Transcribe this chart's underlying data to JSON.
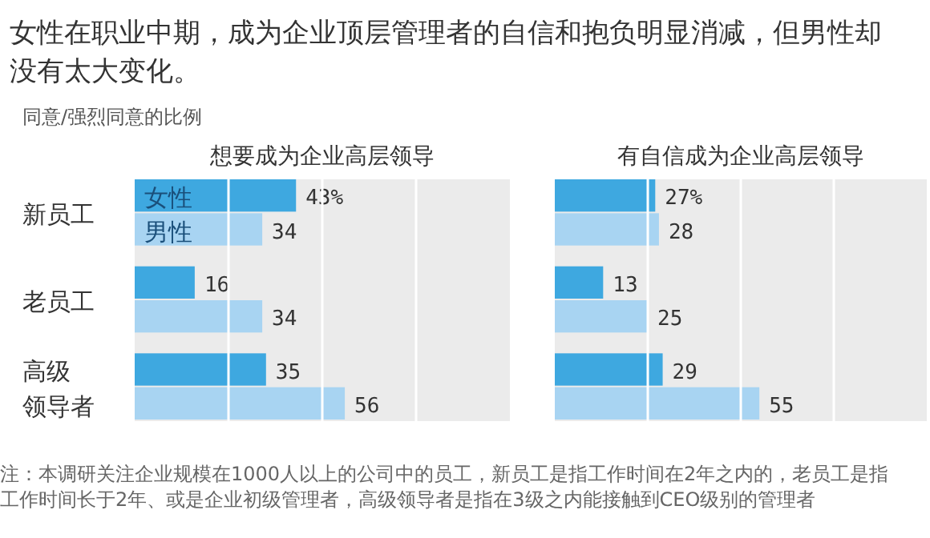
{
  "chart_data": [
    {
      "type": "other",
      "title": "女性在职业中期，成为企业顶层管理者的自信和抱负明显消减，但男性却没有太大变化。",
      "subtitle": "同意/强烈同意的比例",
      "annotations": [
        "注：本调研关注企业规模在1000人以上的公司中的员工，新员工是指工作时间在2年之内的，老员工是指工作时间长于2年、或是企业初级管理者，高级领导者是指在3级之内能接触到CEO级别的管理者"
      ]
    },
    {
      "type": "bar",
      "orientation": "horizontal",
      "title": "想要成为企业高层领导",
      "categories": [
        "新员工",
        "老员工",
        "高级领导者"
      ],
      "xlim": [
        0,
        100
      ],
      "xticks": [
        {
          "value": 25,
          "label": null
        },
        {
          "value": 50,
          "label": null
        },
        {
          "value": 75,
          "label": null
        }
      ],
      "grid": "x",
      "series": [
        {
          "name": "女性",
          "color": "#3ea8e0",
          "values": [
            43,
            16,
            35
          ],
          "value_labels": [
            "43%",
            "16",
            "35"
          ]
        },
        {
          "name": "男性",
          "color": "#a8d4f2",
          "values": [
            34,
            34,
            56
          ],
          "value_labels": [
            "34",
            "34",
            "56"
          ]
        }
      ]
    },
    {
      "type": "bar",
      "orientation": "horizontal",
      "title": "有自信成为企业高层领导",
      "categories": [
        null,
        null,
        null
      ],
      "xlim": [
        0,
        100
      ],
      "xticks": [
        {
          "value": 25,
          "label": null
        },
        {
          "value": 50,
          "label": null
        },
        {
          "value": 75,
          "label": null
        }
      ],
      "grid": "x",
      "series": [
        {
          "color": "#3ea8e0",
          "values": [
            27,
            13,
            29
          ],
          "value_labels": [
            "27%",
            "13",
            "29"
          ]
        },
        {
          "color": "#a8d4f2",
          "values": [
            28,
            25,
            55
          ],
          "value_labels": [
            "28",
            "25",
            "55"
          ]
        }
      ]
    }
  ]
}
